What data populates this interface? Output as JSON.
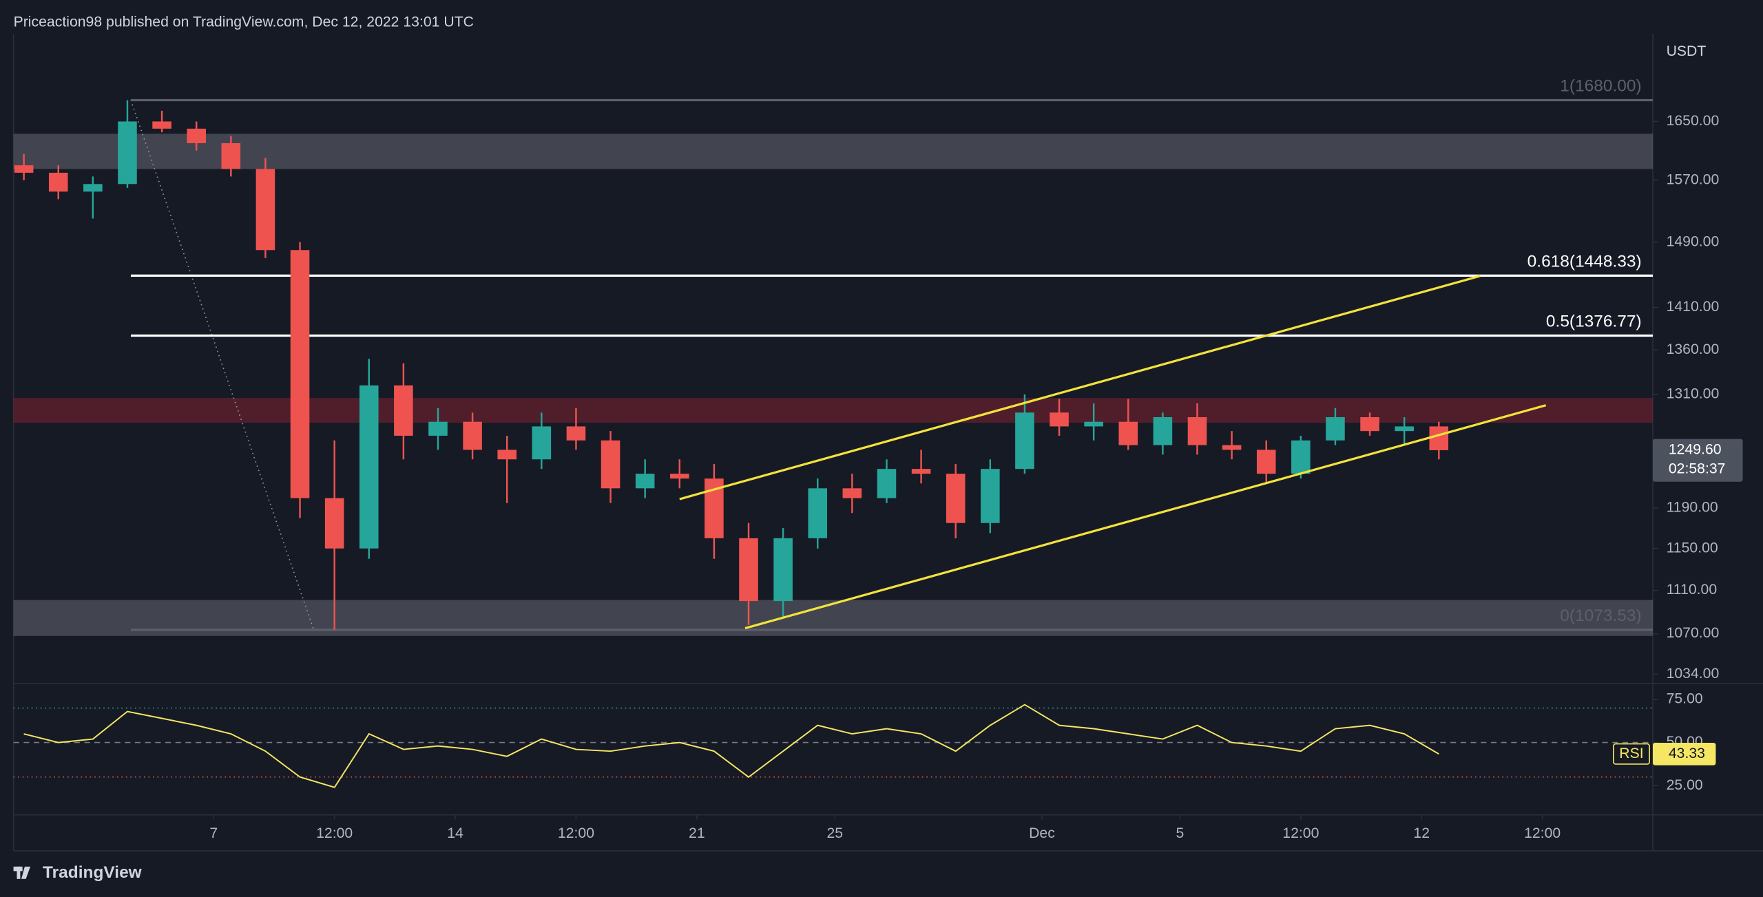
{
  "chart_data": {
    "type": "candlestick",
    "title": "Priceaction98 published on TradingView.com, Dec 12, 2022 13:01 UTC",
    "brand": "TradingView",
    "y_unit": "USDT",
    "log_scale": true,
    "xlim": [
      1.2,
      48.7
    ],
    "ylim": [
      1026,
      1777
    ],
    "yticks": [
      {
        "value": 1650,
        "label": "1650.00"
      },
      {
        "value": 1570,
        "label": "1570.00"
      },
      {
        "value": 1490,
        "label": "1490.00"
      },
      {
        "value": 1410,
        "label": "1410.00"
      },
      {
        "value": 1360,
        "label": "1360.00"
      },
      {
        "value": 1310,
        "label": "1310.00"
      },
      {
        "value": 1190,
        "label": "1190.00"
      },
      {
        "value": 1150,
        "label": "1150.00"
      },
      {
        "value": 1110,
        "label": "1110.00"
      },
      {
        "value": 1070,
        "label": "1070.00"
      },
      {
        "value": 1034,
        "label": "1034.00"
      }
    ],
    "xticks": [
      7,
      {
        "value": 10.5,
        "label": "12:00"
      },
      14,
      {
        "value": 17.5,
        "label": "12:00"
      },
      21,
      25,
      {
        "value": 31,
        "label": "Dec"
      },
      {
        "value": 35,
        "label": "5"
      },
      {
        "value": 38.5,
        "label": "12:00"
      },
      {
        "value": 42,
        "label": "12"
      },
      {
        "value": 45.5,
        "label": "12:00"
      }
    ],
    "x": [
      1.5,
      2.5,
      3.5,
      4.5,
      5.5,
      6.5,
      7.5,
      8.5,
      9.5,
      10.5,
      11.5,
      12.5,
      13.5,
      14.5,
      15.5,
      16.5,
      17.5,
      18.5,
      19.5,
      20.5,
      21.5,
      22.5,
      23.5,
      24.5,
      25.5,
      26.5,
      27.5,
      28.5,
      29.5,
      30.5,
      31.5,
      32.5,
      33.5,
      34.5,
      35.5,
      36.5,
      37.5,
      38.5,
      39.5,
      40.5,
      41.5,
      42.5
    ],
    "candles": {
      "up_color": "#26a69a",
      "down_color": "#ef5350",
      "open": [
        1590,
        1580,
        1555,
        1565,
        1650,
        1640,
        1620,
        1585,
        1480,
        1200,
        1150,
        1320,
        1265,
        1280,
        1250,
        1240,
        1275,
        1260,
        1210,
        1225,
        1220,
        1160,
        1100,
        1160,
        1210,
        1200,
        1230,
        1225,
        1175,
        1230,
        1290,
        1275,
        1280,
        1255,
        1285,
        1255,
        1250,
        1225,
        1260,
        1285,
        1270,
        1275
      ],
      "high": [
        1605,
        1590,
        1575,
        1680,
        1665,
        1650,
        1630,
        1600,
        1490,
        1260,
        1350,
        1345,
        1295,
        1290,
        1265,
        1290,
        1295,
        1270,
        1240,
        1240,
        1235,
        1175,
        1170,
        1220,
        1225,
        1240,
        1250,
        1235,
        1240,
        1310,
        1305,
        1300,
        1305,
        1290,
        1300,
        1270,
        1260,
        1265,
        1295,
        1290,
        1285,
        1280
      ],
      "low": [
        1570,
        1545,
        1520,
        1560,
        1635,
        1610,
        1575,
        1470,
        1180,
        1073.53,
        1140,
        1240,
        1250,
        1240,
        1195,
        1230,
        1250,
        1195,
        1200,
        1210,
        1140,
        1078,
        1085,
        1150,
        1185,
        1195,
        1215,
        1160,
        1165,
        1225,
        1265,
        1260,
        1250,
        1245,
        1245,
        1240,
        1215,
        1220,
        1255,
        1265,
        1255,
        1240
      ],
      "close": [
        1580,
        1555,
        1565,
        1650,
        1640,
        1620,
        1585,
        1480,
        1200,
        1150,
        1320,
        1265,
        1280,
        1250,
        1240,
        1275,
        1260,
        1210,
        1225,
        1220,
        1160,
        1100,
        1160,
        1210,
        1200,
        1230,
        1225,
        1175,
        1230,
        1290,
        1275,
        1280,
        1255,
        1285,
        1255,
        1250,
        1225,
        1260,
        1285,
        1270,
        1275,
        1249.6
      ]
    },
    "zones": [
      {
        "range": [
          1585,
          1633
        ],
        "color": "rgba(120,123,134,0.45)"
      },
      {
        "range": [
          1279,
          1306
        ],
        "color": "rgba(150,35,50,0.45)"
      },
      {
        "range": [
          1068,
          1101
        ],
        "color": "rgba(120,123,134,0.45)"
      }
    ],
    "fib_anchor_x": [
      4.6,
      9.9
    ],
    "fib_levels": [
      {
        "value": 1680,
        "label": "1(1680.00)",
        "color": "#5d606b"
      },
      {
        "value": 1448.33,
        "label": "0.618(1448.33)",
        "color": "#ffffff"
      },
      {
        "value": 1376.77,
        "label": "0.5(1376.77)",
        "color": "#ffffff"
      },
      {
        "value": 1073.53,
        "label": "0(1073.53)",
        "color": "#5d606b"
      }
    ],
    "trendlines": [
      {
        "x": [
          20.5,
          43.7
        ],
        "y": [
          1199,
          1448
        ]
      },
      {
        "x": [
          22.4,
          45.6
        ],
        "y": [
          1075,
          1298
        ]
      }
    ],
    "trendline_color": "#f3e23b",
    "last_price": {
      "value": 1249.6,
      "label": "1249.60"
    },
    "countdown": "02:58:37",
    "rsi": {
      "name": "RSI",
      "color": "#f5e663",
      "ylim": [
        8,
        83
      ],
      "yticks": [
        {
          "value": 75,
          "label": "75.00"
        },
        {
          "value": 50,
          "label": "50.00"
        },
        {
          "value": 25,
          "label": "25.00"
        }
      ],
      "bands": [
        70,
        50,
        30
      ],
      "values": [
        55,
        50,
        52,
        68,
        64,
        60,
        55,
        45,
        30,
        24,
        55,
        46,
        48,
        46,
        42,
        52,
        46,
        45,
        48,
        50,
        45,
        30,
        45,
        60,
        55,
        58,
        55,
        45,
        60,
        72,
        60,
        58,
        55,
        52,
        60,
        50,
        48,
        45,
        58,
        60,
        55,
        43.33
      ]
    }
  }
}
